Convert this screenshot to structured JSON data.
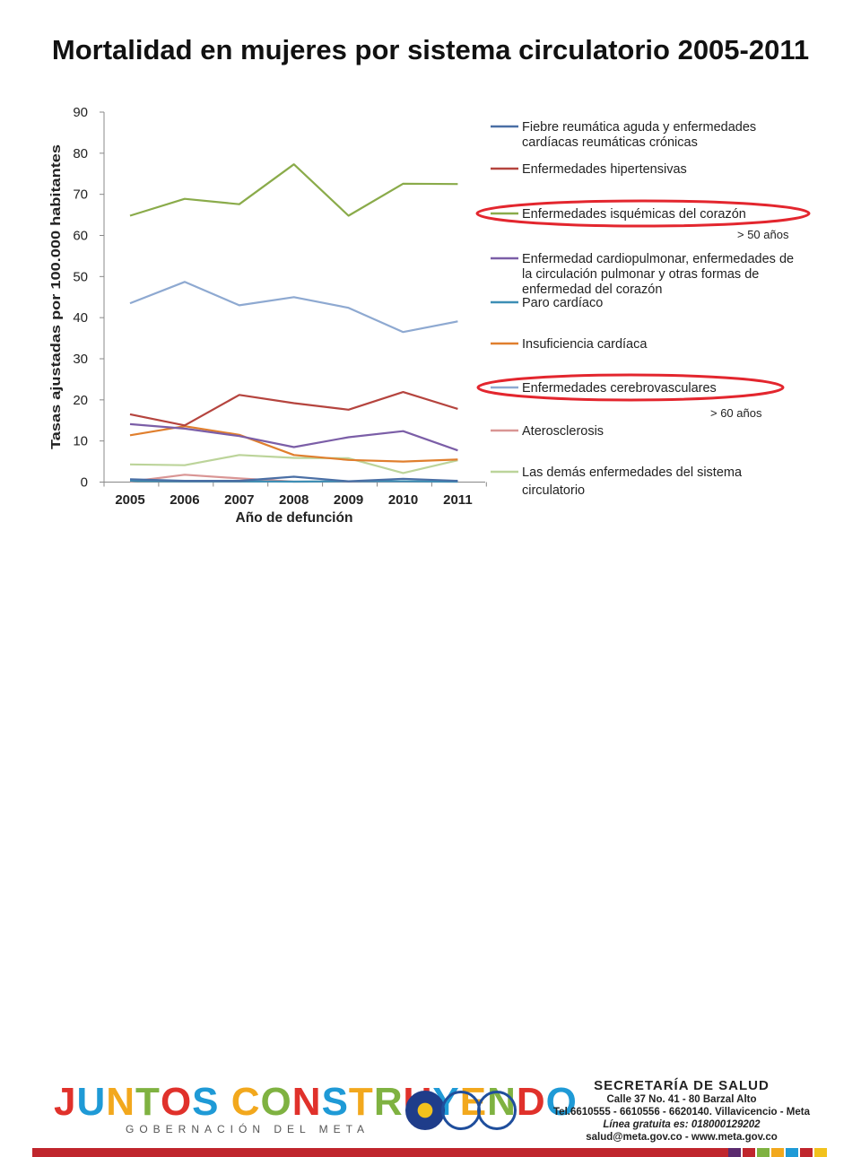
{
  "title": "Mortalidad en mujeres por sistema circulatorio 2005-2011",
  "chart_data": {
    "type": "line",
    "xlabel": "Año de defunción",
    "ylabel": "Tasas ajustadas por 100.000 habitantes",
    "categories": [
      "2005",
      "2006",
      "2007",
      "2008",
      "2009",
      "2010",
      "2011"
    ],
    "ylim": [
      0,
      90
    ],
    "yticks": [
      0,
      10,
      20,
      30,
      40,
      50,
      60,
      70,
      80,
      90
    ],
    "grid": false,
    "legend_position": "right",
    "series": [
      {
        "name": "Fiebre reumática aguda y enfermedades cardíacas reumáticas crónicas",
        "color": "#4a6fa5",
        "values": [
          0.7,
          0.3,
          0.3,
          1.3,
          0.2,
          0.8,
          0.3
        ]
      },
      {
        "name": "Enfermedades hipertensivas",
        "color": "#b5443e",
        "values": [
          16.5,
          13.8,
          21.2,
          19.2,
          17.6,
          21.9,
          17.8
        ]
      },
      {
        "name": "Enfermedades isquémicas del corazón",
        "color": "#8aab4a",
        "values": [
          64.8,
          68.9,
          67.6,
          77.3,
          64.8,
          72.6,
          72.5
        ]
      },
      {
        "name": "Enfermedad cardiopulmonar, enfermedades de la circulación pulmonar y otras formas de enfermedad del corazón",
        "color": "#7b5ea7",
        "values": [
          14.1,
          13.0,
          11.2,
          8.5,
          10.9,
          12.4,
          7.7
        ]
      },
      {
        "name": "Paro cardíaco",
        "color": "#3d8fb5",
        "values": [
          0.3,
          0.2,
          0.2,
          0.1,
          0.2,
          0.2,
          0.1
        ]
      },
      {
        "name": "Insuficiencia cardíaca",
        "color": "#e07f2e",
        "values": [
          11.4,
          13.6,
          11.5,
          6.6,
          5.4,
          5.0,
          5.5
        ]
      },
      {
        "name": "Enfermedades cerebrovasculares",
        "color": "#8ea9d1",
        "values": [
          43.5,
          48.7,
          43.0,
          45.0,
          42.4,
          36.5,
          39.1
        ]
      },
      {
        "name": "Aterosclerosis",
        "color": "#d99594",
        "values": [
          0.1,
          1.8,
          0.9,
          0.1,
          0.1,
          0.1,
          0.1
        ]
      },
      {
        "name": "Las demás enfermedades del sistema circulatorio",
        "color": "#bcd49a",
        "values": [
          4.3,
          4.1,
          6.6,
          5.9,
          5.8,
          2.2,
          5.3
        ]
      }
    ],
    "annotations": [
      {
        "text": "> 50 años",
        "series_index": 2
      },
      {
        "text": "> 60 años",
        "series_index": 6
      }
    ]
  },
  "colors": {
    "highlight": "#e3262e",
    "footer_rule": "#c0262d"
  },
  "footer": {
    "logo_text": "JUNTOS CONSTRUYENDO",
    "logo_sub": "GOBERNACIÓN DEL META",
    "dept_title": "SECRETARÍA DE SALUD",
    "address": "Calle 37 No. 41 - 80 Barzal Alto",
    "phones": "Tel.6610555 - 6610556 - 6620140. Villavicencio - Meta",
    "hotline": "Línea gratuita es: 018000129202",
    "contact": "salud@meta.gov.co - www.meta.gov.co"
  }
}
